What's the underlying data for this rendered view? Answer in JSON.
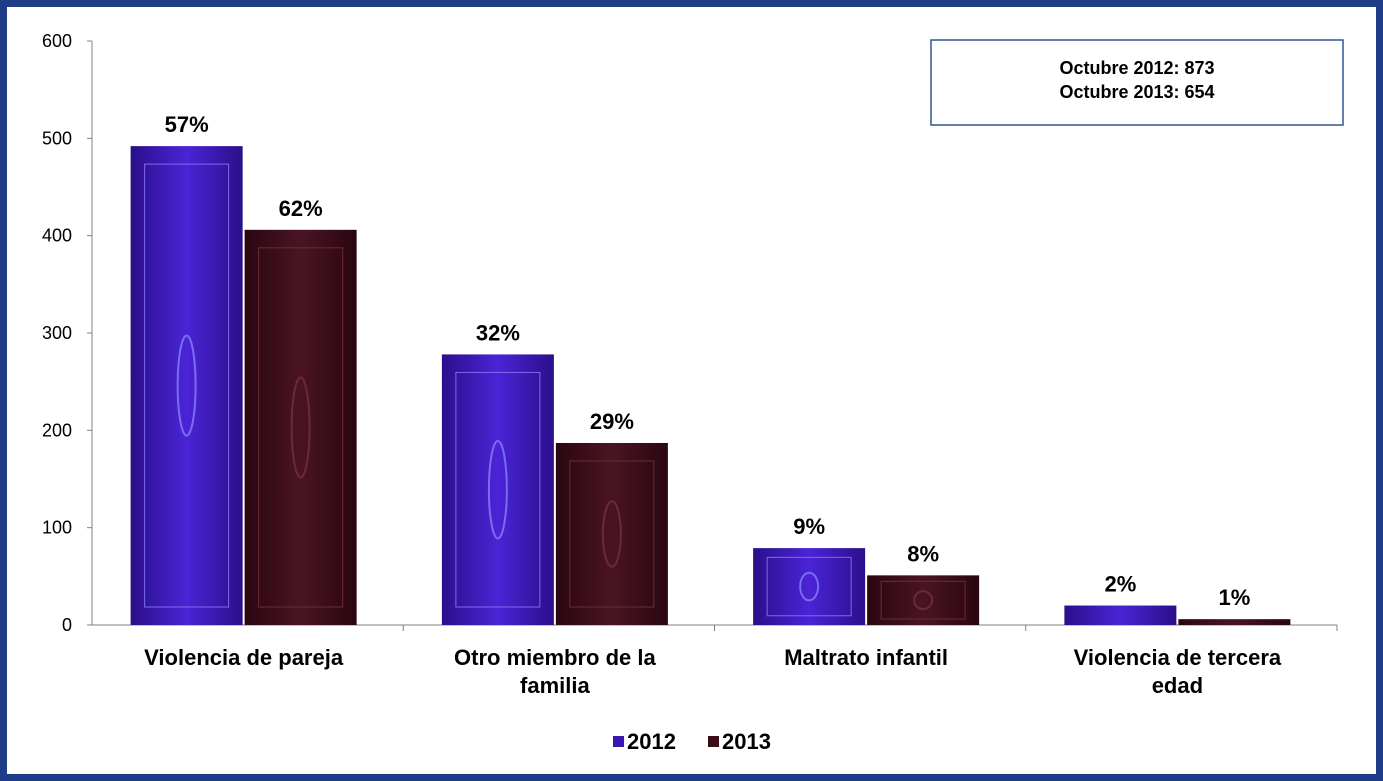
{
  "chart_data": {
    "type": "bar",
    "categories": [
      [
        "Violencia de pareja"
      ],
      [
        "Otro miembro de la",
        "familia"
      ],
      [
        "Maltrato infantil"
      ],
      [
        "Violencia de tercera",
        "edad"
      ]
    ],
    "series": [
      {
        "name": "2012",
        "values": [
          492,
          278,
          79,
          20
        ],
        "labels": [
          "57%",
          "32%",
          "9%",
          "2%"
        ],
        "color": "#3a17b5"
      },
      {
        "name": "2013",
        "values": [
          406,
          187,
          51,
          6
        ],
        "labels": [
          "62%",
          "29%",
          "8%",
          "1%"
        ],
        "color": "#3a0c18"
      }
    ],
    "y_ticks": [
      "0",
      "100",
      "200",
      "300",
      "400",
      "500",
      "600"
    ],
    "ylim": [
      0,
      600
    ],
    "grid": false,
    "legend_position": "bottom",
    "annotation": {
      "lines": [
        "Octubre 2012: 873",
        "Octubre 2013: 654"
      ]
    }
  }
}
